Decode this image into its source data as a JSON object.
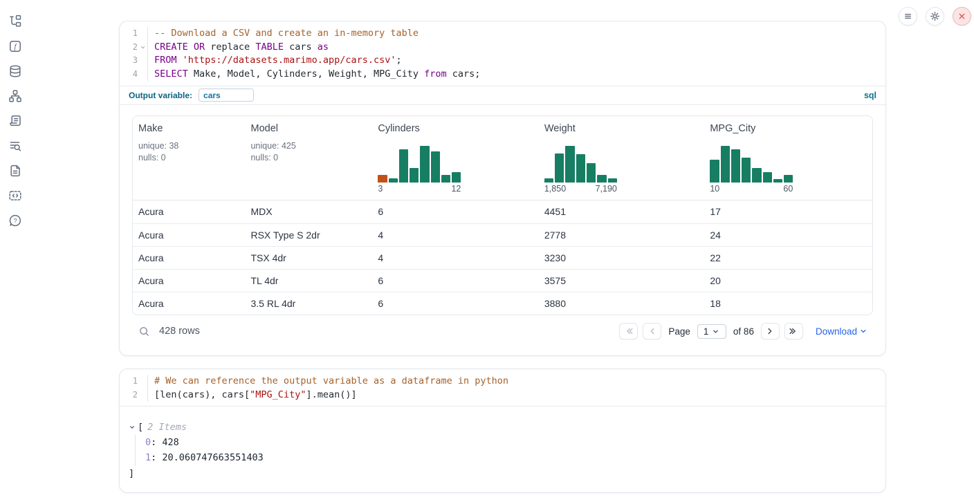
{
  "sidebar": {
    "icons": [
      "file-tree",
      "functions",
      "data-sources",
      "dependency-graph",
      "logs",
      "find",
      "documentation",
      "snippets",
      "help"
    ]
  },
  "topbar": {
    "buttons": [
      "menu",
      "settings",
      "shutdown"
    ]
  },
  "colors": {
    "hist_bar": "#177e64",
    "hist_bar_highlight": "#c1511b",
    "keyword": "#770088",
    "string": "#aa1111",
    "comment": "#a5622b",
    "accent_blue": "#2563eb",
    "badge_teal": "#0e7490"
  },
  "cell1": {
    "language_badge": "sql",
    "output_variable_label": "Output variable:",
    "output_variable_value": "cars",
    "code_lines": [
      {
        "num": "1",
        "tokens": [
          {
            "c": "cm",
            "t": "-- Download a CSV and create an in-memory table"
          }
        ]
      },
      {
        "num": "2",
        "fold": true,
        "tokens": [
          {
            "c": "kw",
            "t": "CREATE OR"
          },
          {
            "c": "pl",
            "t": " replace "
          },
          {
            "c": "kw",
            "t": "TABLE"
          },
          {
            "c": "pl",
            "t": " cars "
          },
          {
            "c": "kw",
            "t": "as"
          }
        ]
      },
      {
        "num": "3",
        "tokens": [
          {
            "c": "kw",
            "t": "FROM"
          },
          {
            "c": "pl",
            "t": " "
          },
          {
            "c": "str",
            "t": "'https://datasets.marimo.app/cars.csv'"
          },
          {
            "c": "pl",
            "t": ";"
          }
        ]
      },
      {
        "num": "4",
        "tokens": [
          {
            "c": "kw",
            "t": "SELECT"
          },
          {
            "c": "pl",
            "t": " Make, Model, Cylinders, Weight, MPG_City "
          },
          {
            "c": "kw",
            "t": "from"
          },
          {
            "c": "pl",
            "t": " cars;"
          }
        ]
      }
    ],
    "table": {
      "columns": [
        {
          "name": "Make",
          "stats": [
            "unique: 38",
            "nulls: 0"
          ]
        },
        {
          "name": "Model",
          "stats": [
            "unique: 425",
            "nulls: 0"
          ]
        },
        {
          "name": "Cylinders",
          "hist": {
            "min_label": "3",
            "max_label": "12",
            "heights": [
              0.2,
              0.12,
              0.9,
              0.4,
              1,
              0.85,
              0.2,
              0.28
            ],
            "highlight_first": true
          }
        },
        {
          "name": "Weight",
          "hist": {
            "min_label": "1,850",
            "max_label": "7,190",
            "heights": [
              0.12,
              0.8,
              1,
              0.78,
              0.52,
              0.2,
              0.12
            ]
          }
        },
        {
          "name": "MPG_City",
          "hist": {
            "min_label": "10",
            "max_label": "60",
            "heights": [
              0.62,
              1,
              0.9,
              0.68,
              0.4,
              0.28,
              0.1,
              0.2
            ]
          }
        }
      ],
      "rows": [
        [
          "Acura",
          "MDX",
          "6",
          "4451",
          "17"
        ],
        [
          "Acura",
          "RSX Type S 2dr",
          "4",
          "2778",
          "24"
        ],
        [
          "Acura",
          "TSX 4dr",
          "4",
          "3230",
          "22"
        ],
        [
          "Acura",
          "TL 4dr",
          "6",
          "3575",
          "20"
        ],
        [
          "Acura",
          "3.5 RL 4dr",
          "6",
          "3880",
          "18"
        ]
      ],
      "footer": {
        "rows_label": "428 rows",
        "page_label": "Page",
        "page_value": "1",
        "of_label": "of 86",
        "download_label": "Download"
      }
    }
  },
  "cell2": {
    "code_lines": [
      {
        "num": "1",
        "tokens": [
          {
            "c": "cm",
            "t": "# We can reference the output variable as a dataframe in python"
          }
        ]
      },
      {
        "num": "2",
        "tokens": [
          {
            "c": "pl",
            "t": "[len(cars), cars["
          },
          {
            "c": "str",
            "t": "\"MPG_City\""
          },
          {
            "c": "pl",
            "t": "].mean()]"
          }
        ]
      }
    ],
    "output": {
      "open": "[",
      "items_label": "2 Items",
      "entries": [
        {
          "key": "0",
          "value": "428"
        },
        {
          "key": "1",
          "value": "20.060747663551403"
        }
      ],
      "close": "]"
    }
  },
  "chart_data": [
    {
      "type": "bar",
      "title": "Cylinders column mini-histogram",
      "x_range_labels": [
        "3",
        "12"
      ],
      "values_normalized": [
        0.2,
        0.12,
        0.9,
        0.4,
        1,
        0.85,
        0.2,
        0.28
      ]
    },
    {
      "type": "bar",
      "title": "Weight column mini-histogram",
      "x_range_labels": [
        "1,850",
        "7,190"
      ],
      "values_normalized": [
        0.12,
        0.8,
        1,
        0.78,
        0.52,
        0.2,
        0.12
      ]
    },
    {
      "type": "bar",
      "title": "MPG_City column mini-histogram",
      "x_range_labels": [
        "10",
        "60"
      ],
      "values_normalized": [
        0.62,
        1,
        0.9,
        0.68,
        0.4,
        0.28,
        0.1,
        0.2
      ]
    }
  ]
}
